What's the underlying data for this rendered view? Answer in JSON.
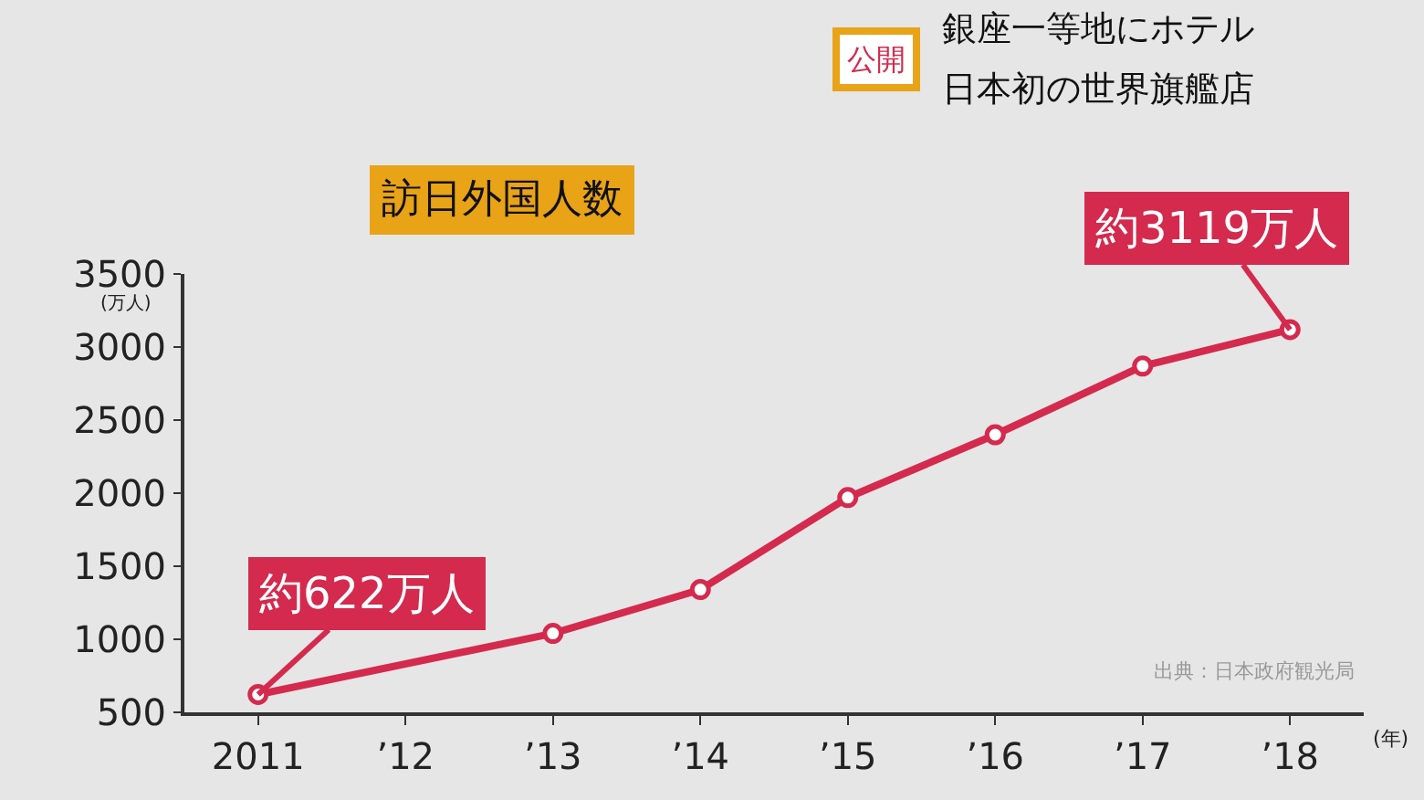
{
  "chart_data": {
    "type": "line",
    "title": "訪日外国人数",
    "xlabel": "(年)",
    "ylabel": "(万人)",
    "x": [
      2011,
      2013,
      2014,
      2015,
      2016,
      2017,
      2018
    ],
    "series": [
      {
        "color": "#d42a4e",
        "values": [
          622,
          1040,
          1340,
          1970,
          2400,
          2870,
          3119
        ]
      }
    ],
    "xlim": [
      2010.5,
      2018.5
    ],
    "xticks": [
      {
        "value": 2011,
        "label": "2011"
      },
      {
        "value": 2012,
        "label": "’12"
      },
      {
        "value": 2013,
        "label": "’13"
      },
      {
        "value": 2014,
        "label": "’14"
      },
      {
        "value": 2015,
        "label": "’15"
      },
      {
        "value": 2016,
        "label": "’16"
      },
      {
        "value": 2017,
        "label": "’17"
      },
      {
        "value": 2018,
        "label": "’18"
      }
    ],
    "ylim": [
      500,
      3500
    ],
    "yticks": [
      500,
      1000,
      1500,
      2000,
      2500,
      3000,
      3500
    ],
    "marker": "circle",
    "line_style": "solid",
    "annotations": [
      {
        "text": "約622万人",
        "x": 2011,
        "y": 622
      },
      {
        "text": "約3119万人",
        "x": 2018,
        "y": 3119
      },
      "出典：日本政府観光局",
      "公開",
      "銀座一等地にホテル",
      "日本初の世界旗艦店"
    ]
  }
}
